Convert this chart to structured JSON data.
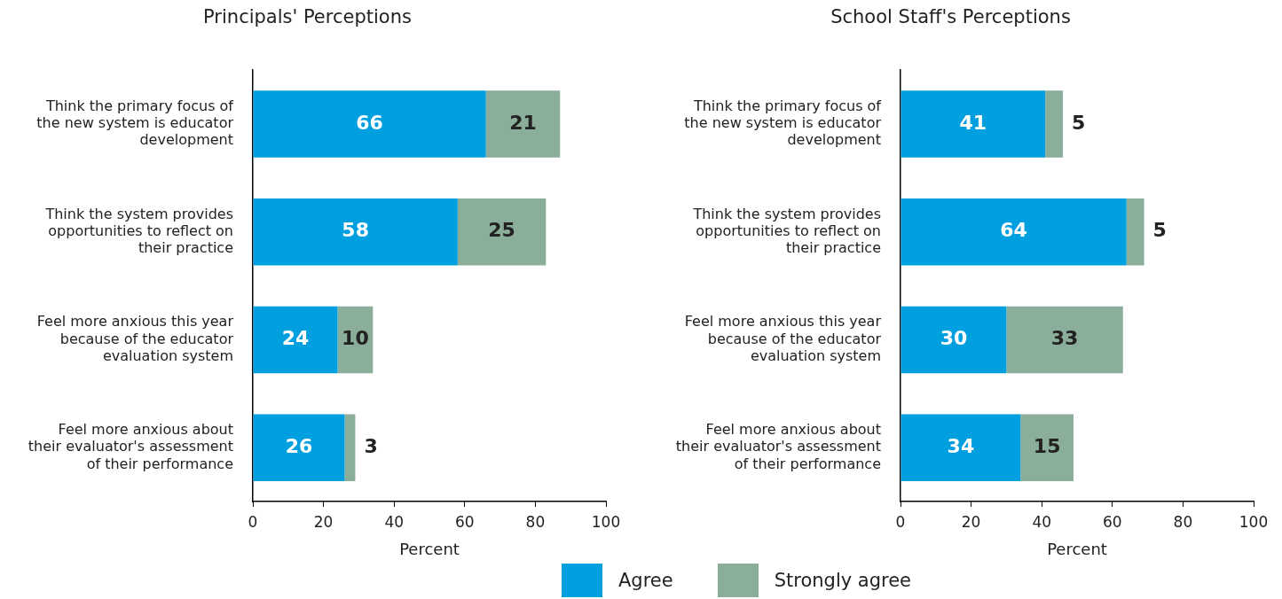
{
  "chart_data": [
    {
      "type": "bar",
      "orientation": "horizontal",
      "stacked": true,
      "title": "Principals' Perceptions",
      "xlabel": "Percent",
      "categories": [
        "Think the primary focus of the new system is educator development",
        "Think the system provides opportunities to reflect on their practice",
        "Feel more anxious this year because of the educator evaluation system",
        "Feel more anxious about their evaluator's assessment of their performance"
      ],
      "series": [
        {
          "name": "Agree",
          "color": "#009fdf",
          "values": [
            66,
            58,
            24,
            26
          ]
        },
        {
          "name": "Strongly agree",
          "color": "#8aae9a",
          "values": [
            21,
            25,
            10,
            3
          ]
        }
      ],
      "xlim": [
        0,
        100
      ],
      "xticks": [
        0,
        20,
        40,
        60,
        80,
        100
      ],
      "grid": false,
      "data_labels": true,
      "legend": "bottom"
    },
    {
      "type": "bar",
      "orientation": "horizontal",
      "stacked": true,
      "title": "School Staff's Perceptions",
      "xlabel": "Percent",
      "categories": [
        "Think the primary focus of the new system is educator development",
        "Think the system provides opportunities to reflect on their practice",
        "Feel more anxious this year because of the educator evaluation system",
        "Feel more anxious about their evaluator's assessment of their performance"
      ],
      "series": [
        {
          "color": "#009fdf",
          "values": [
            41,
            64,
            30,
            34
          ]
        },
        {
          "color": "#8aae9a",
          "values": [
            5,
            5,
            33,
            15
          ]
        }
      ],
      "xlim": [
        0,
        100
      ],
      "xticks": [
        0,
        20,
        40,
        60,
        80,
        100
      ],
      "grid": false,
      "data_labels": true
    }
  ]
}
